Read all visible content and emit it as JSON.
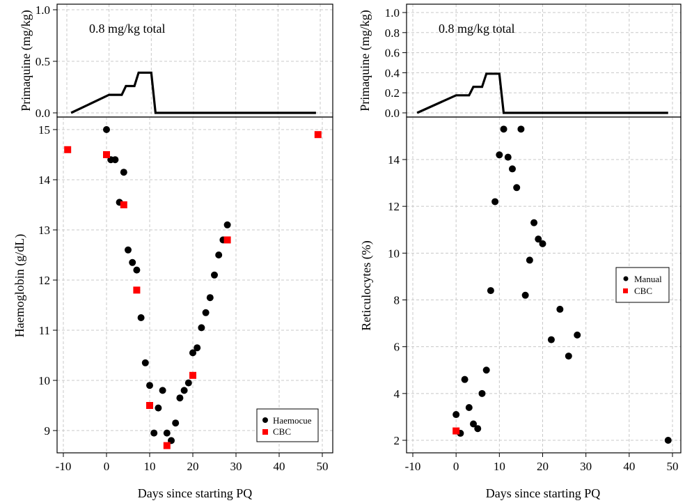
{
  "chart_data": [
    {
      "type": "line",
      "panel": "left-top",
      "title": "",
      "annotation": "0.8 mg/kg total",
      "xlabel": "",
      "ylabel": "Primaquine (mg/kg)",
      "xlim": [
        -10,
        50
      ],
      "ylim": [
        0,
        1.0
      ],
      "yticks": [
        0.0,
        0.5,
        1.0
      ],
      "ytick_labels": [
        "0.0",
        "0.5",
        "1.0"
      ],
      "grid": true,
      "series": [
        {
          "x": [
            -9,
            0,
            3,
            4,
            6,
            7,
            10,
            11,
            49
          ],
          "y": [
            0.0,
            0.175,
            0.175,
            0.26,
            0.26,
            0.39,
            0.39,
            0.0,
            0.0
          ]
        }
      ]
    },
    {
      "type": "scatter",
      "panel": "left-bottom",
      "title": "",
      "xlabel": "Days since starting PQ",
      "ylabel": "Haemoglobin (g/dL)",
      "xlim": [
        -10,
        50
      ],
      "ylim": [
        8.6,
        15.2
      ],
      "xticks": [
        -10,
        0,
        10,
        20,
        30,
        40,
        50
      ],
      "xtick_labels": [
        "-10",
        "0",
        "10",
        "20",
        "30",
        "40",
        "50"
      ],
      "yticks": [
        9,
        10,
        11,
        12,
        13,
        14,
        15
      ],
      "ytick_labels": [
        "9",
        "10",
        "11",
        "12",
        "13",
        "14",
        "15"
      ],
      "grid": true,
      "legend_position": "bottom-right",
      "series": [
        {
          "name": "Haemocue",
          "color": "#000000",
          "marker": "circle",
          "x": [
            0,
            1,
            2,
            3,
            4,
            5,
            6,
            7,
            8,
            9,
            10,
            11,
            12,
            13,
            14,
            15,
            16,
            17,
            18,
            19,
            20,
            21,
            22,
            23,
            24,
            25,
            26,
            27,
            28
          ],
          "y": [
            15.0,
            14.4,
            14.4,
            13.55,
            14.15,
            12.6,
            12.35,
            12.2,
            11.25,
            10.35,
            9.9,
            8.95,
            9.45,
            9.8,
            8.95,
            8.8,
            9.15,
            9.65,
            9.8,
            9.95,
            10.55,
            10.65,
            11.05,
            11.35,
            11.65,
            12.1,
            12.5,
            12.8,
            13.1
          ]
        },
        {
          "name": "CBC",
          "color": "#ff0000",
          "marker": "square",
          "x": [
            -9,
            0,
            4,
            7,
            10,
            14,
            20,
            28,
            49
          ],
          "y": [
            14.6,
            14.5,
            13.5,
            11.8,
            9.5,
            8.7,
            10.1,
            12.8,
            14.9
          ]
        }
      ]
    },
    {
      "type": "line",
      "panel": "right-top",
      "title": "",
      "annotation": "0.8 mg/kg total",
      "xlabel": "",
      "ylabel": "Primaquine (mg/kg)",
      "xlim": [
        -10,
        50
      ],
      "ylim": [
        0,
        1.0
      ],
      "yticks": [
        0.0,
        0.2,
        0.4,
        0.6,
        0.8,
        1.0
      ],
      "ytick_labels": [
        "0.0",
        "0.2",
        "0.4",
        "0.6",
        "0.8",
        "1.0"
      ],
      "grid": true,
      "series": [
        {
          "x": [
            -9,
            0,
            3,
            4,
            6,
            7,
            10,
            11,
            49
          ],
          "y": [
            0.0,
            0.175,
            0.175,
            0.26,
            0.26,
            0.39,
            0.39,
            0.0,
            0.0
          ]
        }
      ]
    },
    {
      "type": "scatter",
      "panel": "right-bottom",
      "title": "",
      "xlabel": "Days since starting PQ",
      "ylabel": "Reticulocytes (%)",
      "xlim": [
        -10,
        50
      ],
      "ylim": [
        1.6,
        15.8
      ],
      "xticks": [
        -10,
        0,
        10,
        20,
        30,
        40,
        50
      ],
      "xtick_labels": [
        "-10",
        "0",
        "10",
        "20",
        "30",
        "40",
        "50"
      ],
      "yticks": [
        2,
        4,
        6,
        8,
        10,
        12,
        14
      ],
      "ytick_labels": [
        "2",
        "4",
        "6",
        "8",
        "10",
        "12",
        "14"
      ],
      "grid": true,
      "legend_position": "right",
      "series": [
        {
          "name": "Manual",
          "color": "#000000",
          "marker": "circle",
          "x": [
            0,
            1,
            2,
            3,
            4,
            5,
            6,
            7,
            8,
            9,
            10,
            11,
            12,
            13,
            14,
            15,
            16,
            17,
            18,
            19,
            20,
            22,
            24,
            26,
            28,
            49
          ],
          "y": [
            3.1,
            2.3,
            4.6,
            3.4,
            2.7,
            2.5,
            4.0,
            5.0,
            8.4,
            12.2,
            14.2,
            15.3,
            14.1,
            13.6,
            12.8,
            15.3,
            8.2,
            9.7,
            11.3,
            10.6,
            10.4,
            6.3,
            7.6,
            5.6,
            6.5,
            2.0
          ]
        },
        {
          "name": "CBC",
          "color": "#ff0000",
          "marker": "square",
          "x": [
            0
          ],
          "y": [
            2.4
          ]
        }
      ]
    }
  ]
}
